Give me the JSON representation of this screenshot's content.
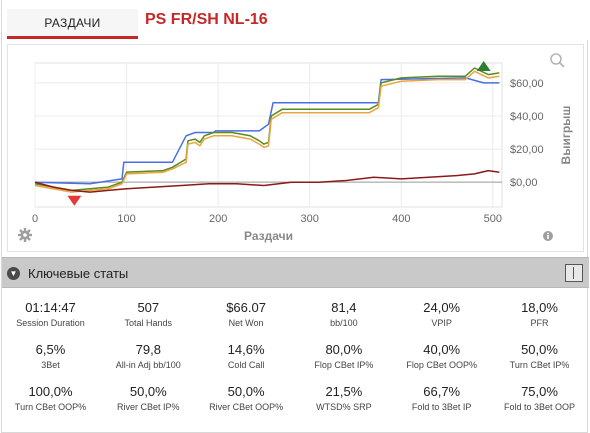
{
  "tabs": {
    "active_label": "РАЗДАЧИ"
  },
  "header": {
    "title": "PS FR/SH NL-16"
  },
  "stats_section": {
    "title": "Ключевые статы"
  },
  "icons": {
    "zoom": "zoom-icon",
    "settings": "gear-icon",
    "info": "info-icon",
    "toggle": "chevron-down-icon",
    "layout": "layout-columns-icon"
  },
  "colors": {
    "accent": "#c62828",
    "blue": "#4a6fe3",
    "green": "#5b8a1f",
    "orange": "#e8a53c",
    "red": "#8b1a1a"
  },
  "chart_data": {
    "type": "line",
    "xlabel": "Раздачи",
    "ylabel": "Выигрыш",
    "xlim": [
      0,
      510
    ],
    "ylim": [
      -15,
      72
    ],
    "x_ticks": [
      "0",
      "100",
      "200",
      "300",
      "400",
      "500"
    ],
    "y_ticks": [
      "$0,00",
      "$20,00",
      "$40,00",
      "$60,00"
    ],
    "series": [
      {
        "color": "#4a6fe3",
        "points": [
          [
            0,
            0
          ],
          [
            60,
            -1
          ],
          [
            95,
            2
          ],
          [
            97,
            12
          ],
          [
            150,
            12
          ],
          [
            165,
            28
          ],
          [
            175,
            30
          ],
          [
            195,
            30
          ],
          [
            197,
            31
          ],
          [
            245,
            31
          ],
          [
            255,
            35
          ],
          [
            260,
            48
          ],
          [
            320,
            48
          ],
          [
            355,
            48
          ],
          [
            375,
            48
          ],
          [
            378,
            62
          ],
          [
            470,
            63
          ],
          [
            490,
            60
          ],
          [
            507,
            60
          ]
        ]
      },
      {
        "color": "#5b8a1f",
        "points": [
          [
            0,
            -1
          ],
          [
            40,
            -5
          ],
          [
            60,
            -4
          ],
          [
            80,
            -3
          ],
          [
            95,
            0
          ],
          [
            100,
            6
          ],
          [
            140,
            7
          ],
          [
            150,
            9
          ],
          [
            165,
            14
          ],
          [
            167,
            25
          ],
          [
            175,
            26
          ],
          [
            180,
            24
          ],
          [
            185,
            28
          ],
          [
            195,
            30
          ],
          [
            215,
            30
          ],
          [
            235,
            28
          ],
          [
            245,
            25
          ],
          [
            250,
            23
          ],
          [
            255,
            24
          ],
          [
            258,
            40
          ],
          [
            270,
            44
          ],
          [
            300,
            44
          ],
          [
            355,
            44
          ],
          [
            365,
            44
          ],
          [
            375,
            47
          ],
          [
            378,
            60
          ],
          [
            400,
            63
          ],
          [
            440,
            64
          ],
          [
            470,
            64
          ],
          [
            480,
            69
          ],
          [
            495,
            65
          ],
          [
            507,
            66
          ]
        ]
      },
      {
        "color": "#e8a53c",
        "points": [
          [
            0,
            -2
          ],
          [
            40,
            -6
          ],
          [
            60,
            -5
          ],
          [
            80,
            -4
          ],
          [
            95,
            -1
          ],
          [
            100,
            5
          ],
          [
            140,
            6
          ],
          [
            150,
            8
          ],
          [
            165,
            12
          ],
          [
            167,
            23
          ],
          [
            175,
            24
          ],
          [
            180,
            22
          ],
          [
            185,
            26
          ],
          [
            195,
            28
          ],
          [
            215,
            28
          ],
          [
            235,
            26
          ],
          [
            245,
            23
          ],
          [
            250,
            21
          ],
          [
            255,
            22
          ],
          [
            258,
            38
          ],
          [
            270,
            42
          ],
          [
            300,
            42
          ],
          [
            355,
            42
          ],
          [
            365,
            42
          ],
          [
            375,
            45
          ],
          [
            378,
            58
          ],
          [
            400,
            61
          ],
          [
            440,
            62
          ],
          [
            470,
            62
          ],
          [
            480,
            67
          ],
          [
            495,
            63
          ],
          [
            507,
            64
          ]
        ]
      },
      {
        "color": "#8b1a1a",
        "points": [
          [
            0,
            0
          ],
          [
            20,
            -3
          ],
          [
            40,
            -5
          ],
          [
            60,
            -6
          ],
          [
            80,
            -5
          ],
          [
            100,
            -4
          ],
          [
            130,
            -3
          ],
          [
            160,
            -2
          ],
          [
            190,
            -1
          ],
          [
            220,
            -1
          ],
          [
            250,
            -2
          ],
          [
            280,
            0
          ],
          [
            310,
            0
          ],
          [
            340,
            1
          ],
          [
            370,
            3
          ],
          [
            400,
            2
          ],
          [
            430,
            3
          ],
          [
            460,
            4
          ],
          [
            480,
            5
          ],
          [
            495,
            7
          ],
          [
            507,
            6
          ]
        ]
      }
    ],
    "markers": [
      {
        "type": "peak",
        "x": 490,
        "y": 69,
        "color": "#2e7d32"
      },
      {
        "type": "trough",
        "x": 43,
        "y": -10,
        "color": "#e53935"
      }
    ],
    "grid": true
  },
  "stats": [
    {
      "value": "01:14:47",
      "label": "Session Duration"
    },
    {
      "value": "507",
      "label": "Total Hands"
    },
    {
      "value": "$66.07",
      "label": "Net Won"
    },
    {
      "value": "81,4",
      "label": "bb/100"
    },
    {
      "value": "24,0%",
      "label": "VPIP"
    },
    {
      "value": "18,0%",
      "label": "PFR"
    },
    {
      "value": "6,5%",
      "label": "3Bet"
    },
    {
      "value": "79,8",
      "label": "All-in Adj bb/100"
    },
    {
      "value": "14,6%",
      "label": "Cold Call"
    },
    {
      "value": "80,0%",
      "label": "Flop CBet IP%"
    },
    {
      "value": "40,0%",
      "label": "Flop CBet OOP%"
    },
    {
      "value": "50,0%",
      "label": "Turn CBet IP%"
    },
    {
      "value": "100,0%",
      "label": "Turn CBet OOP%"
    },
    {
      "value": "50,0%",
      "label": "River CBet IP%"
    },
    {
      "value": "50,0%",
      "label": "River CBet OOP%"
    },
    {
      "value": "21,5%",
      "label": "WTSD% SRP"
    },
    {
      "value": "66,7%",
      "label": "Fold to 3Bet IP"
    },
    {
      "value": "75,0%",
      "label": "Fold to 3Bet OOP"
    }
  ]
}
